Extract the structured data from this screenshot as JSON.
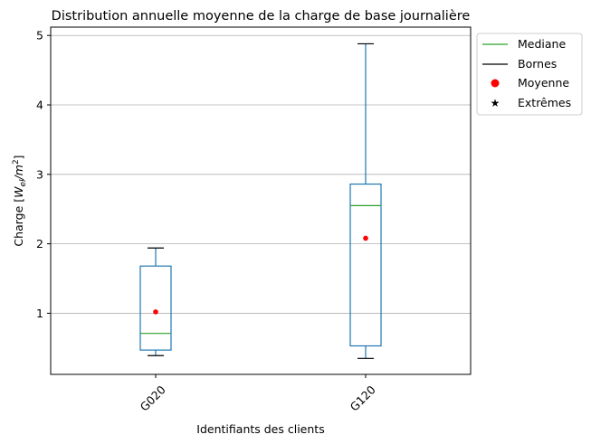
{
  "chart_data": {
    "type": "box",
    "title": "Distribution annuelle moyenne de la charge de base journalière",
    "xlabel": "Identifiants des clients",
    "ylabel_prefix": "Charge [",
    "ylabel_main": "W",
    "ylabel_sub": "el",
    "ylabel_mid": "/m",
    "ylabel_sup": "2",
    "ylabel_suffix": "]",
    "categories": [
      "G020",
      "G120"
    ],
    "ylim": [
      0.12,
      5.12
    ],
    "yticks": [
      1,
      2,
      3,
      4,
      5
    ],
    "ytick_labels": [
      "1",
      "2",
      "3",
      "4",
      "5"
    ],
    "grid": {
      "y": true,
      "x": false
    },
    "boxes": [
      {
        "category": "G020",
        "whislo": 0.39,
        "q1": 0.47,
        "median": 0.71,
        "q3": 1.68,
        "whishi": 1.94,
        "mean": 1.02
      },
      {
        "category": "G120",
        "whislo": 0.35,
        "q1": 0.53,
        "median": 2.55,
        "q3": 2.86,
        "whishi": 4.88,
        "mean": 2.08
      }
    ],
    "legend": {
      "position": "outside upper-right",
      "items": [
        {
          "label": "Mediane",
          "kind": "line",
          "color": "#2ca02c"
        },
        {
          "label": "Bornes",
          "kind": "line",
          "color": "#000000"
        },
        {
          "label": "Moyenne",
          "kind": "dot",
          "color": "#ff0000"
        },
        {
          "label": "Extrêmes",
          "kind": "star",
          "color": "#000000"
        }
      ]
    },
    "colors": {
      "box": "#1f77b4",
      "median": "#2ca02c",
      "whisker_cap": "#000000",
      "mean": "#ff0000",
      "grid": "#b0b0b0"
    }
  }
}
